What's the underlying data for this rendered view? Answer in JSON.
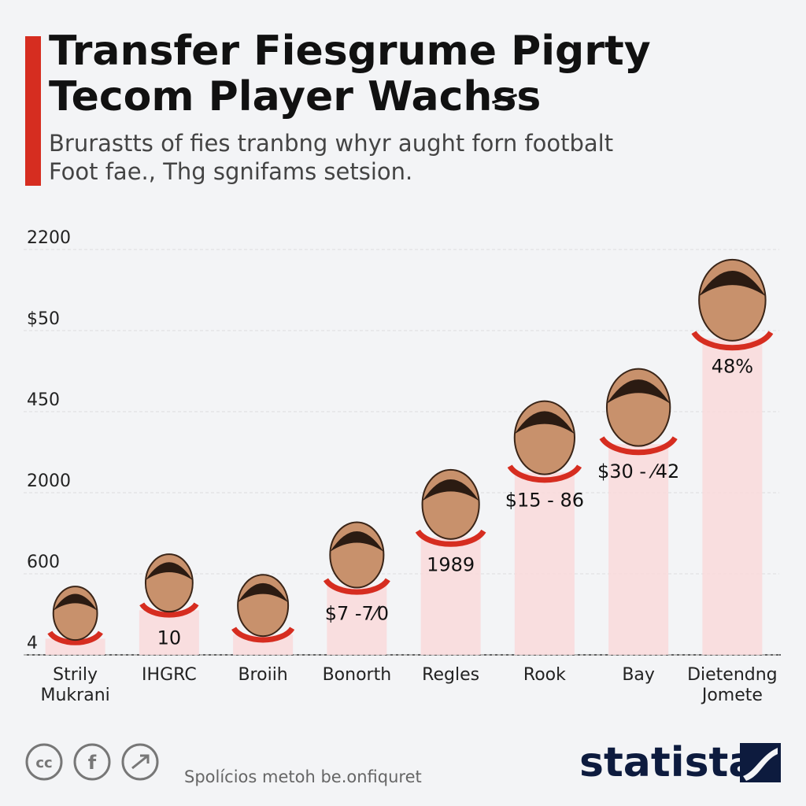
{
  "chart_data": {
    "type": "bar",
    "title": "Transfer Fiesgrume Pigrty Tecom Player Wachꞩs",
    "subtitle": "Brurastts of fies tranbng whyr aught forn footbalt Foot fae., Thg sgnifams setsion.",
    "categories": [
      "Strily Mukrani",
      "IHGRC",
      "Broiih",
      "Bonorth",
      "Regles",
      "Rook",
      "Bay",
      "Dietendng Jomete"
    ],
    "values": [
      0.2,
      0.55,
      0.25,
      0.85,
      1.45,
      2.25,
      2.6,
      3.9
    ],
    "bar_labels": [
      null,
      "10",
      null,
      "$7 -7⁄0",
      "1989",
      "$15 - 86",
      "$30 - ⁄42",
      "48%"
    ],
    "color": "#f9d9db",
    "ylim": [
      0,
      5
    ],
    "yticks": [
      {
        "value": 0,
        "label": "4"
      },
      {
        "value": 1,
        "label": "600"
      },
      {
        "value": 2,
        "label": "2000"
      },
      {
        "value": 3,
        "label": "450"
      },
      {
        "value": 4,
        "label": "$50"
      },
      {
        "value": 5,
        "label": "2200"
      }
    ],
    "grid": true,
    "footer": "Spolícios metoh be.onfiquret",
    "brand": "statista"
  }
}
